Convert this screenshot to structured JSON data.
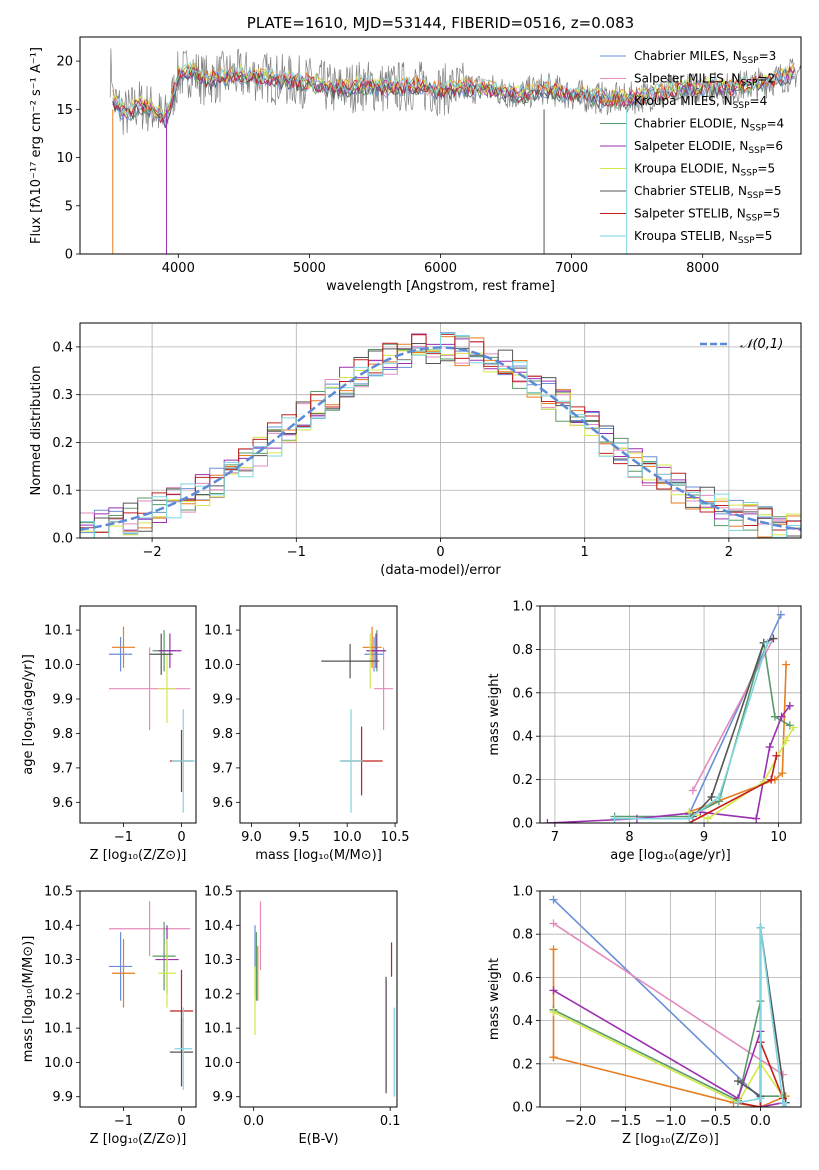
{
  "chart_data": [
    {
      "id": "spectrum",
      "type": "line",
      "title": "PLATE=1610, MJD=53144, FIBERID=0516, z=0.083",
      "xlabel": "wavelength [Angstrom, rest frame]",
      "ylabel": "Flux [fλ10⁻¹⁷ erg cm⁻² s⁻¹ A⁻¹]",
      "xlim": [
        3250,
        8750
      ],
      "ylim": [
        0,
        22.5
      ],
      "xticks": [
        4000,
        5000,
        6000,
        7000,
        8000
      ],
      "yticks": [
        0,
        5,
        10,
        15,
        20
      ],
      "grid": false,
      "legend_position": "top-right",
      "profile": [
        [
          3500,
          16
        ],
        [
          3600,
          14.5
        ],
        [
          3700,
          15.5
        ],
        [
          3800,
          15
        ],
        [
          3900,
          14
        ],
        [
          3950,
          16
        ],
        [
          4000,
          18.5
        ],
        [
          4100,
          19
        ],
        [
          4200,
          18
        ],
        [
          4400,
          18.5
        ],
        [
          4600,
          18.5
        ],
        [
          4800,
          18
        ],
        [
          5000,
          17.8
        ],
        [
          5200,
          17
        ],
        [
          5400,
          17.5
        ],
        [
          5600,
          17.2
        ],
        [
          5800,
          17.5
        ],
        [
          6000,
          17
        ],
        [
          6200,
          17.3
        ],
        [
          6400,
          17
        ],
        [
          6600,
          16.5
        ],
        [
          6800,
          17.2
        ],
        [
          7000,
          16.5
        ],
        [
          7200,
          16.2
        ],
        [
          7400,
          16
        ],
        [
          7600,
          16.5
        ],
        [
          7800,
          17
        ],
        [
          8000,
          17.3
        ],
        [
          8200,
          17.2
        ],
        [
          8400,
          17.6
        ],
        [
          8600,
          18.3
        ],
        [
          8750,
          19
        ]
      ],
      "series": [
        {
          "name": "Chabrier MILES, N_SSP=3",
          "color": "#6a8fd8"
        },
        {
          "name": "Salpeter MILES, N_SSP=2",
          "color": "#e48bbd"
        },
        {
          "name": "Kroupa MILES, N_SSP=4",
          "color": "#e67e22"
        },
        {
          "name": "Chabrier ELODIE, N_SSP=4",
          "color": "#5a9a6a"
        },
        {
          "name": "Salpeter ELODIE, N_SSP=6",
          "color": "#9b30b0"
        },
        {
          "name": "Kroupa ELODIE, N_SSP=5",
          "color": "#d4e84a"
        },
        {
          "name": "Chabrier STELIB, N_SSP=5",
          "color": "#555555"
        },
        {
          "name": "Salpeter STELIB, N_SSP=5",
          "color": "#c0201e"
        },
        {
          "name": "Kroupa STELIB, N_SSP=5",
          "color": "#7fd6e0"
        }
      ],
      "data_color": "#808080"
    },
    {
      "id": "residuals",
      "type": "histogram",
      "xlabel": "(data-model)/error",
      "ylabel": "Normed distribution",
      "xlim": [
        -2.5,
        2.5
      ],
      "ylim": [
        0,
        0.45
      ],
      "xticks": [
        -2,
        -1,
        0,
        1,
        2
      ],
      "yticks": [
        0.0,
        0.1,
        0.2,
        0.3,
        0.4
      ],
      "grid": true,
      "legend_position": "top-right",
      "reference": {
        "name": "𝒩(0,1)",
        "color": "#5b8ad6"
      },
      "bins": 50,
      "series_colors": [
        "#6a8fd8",
        "#e48bbd",
        "#e67e22",
        "#5a9a6a",
        "#9b30b0",
        "#d4e84a",
        "#555555",
        "#c0201e",
        "#7fd6e0"
      ]
    },
    {
      "id": "age-vs-Z",
      "type": "errorbar",
      "xlabel": "Z [log₁₀(Z/Z⊙)]",
      "ylabel": "age  [log₁₀(age/yr)]",
      "xlim": [
        -1.75,
        0.25
      ],
      "ylim": [
        9.54,
        10.17
      ],
      "xticks": [
        -1,
        0
      ],
      "yticks": [
        9.6,
        9.7,
        9.8,
        9.9,
        10.0,
        10.1
      ],
      "points": [
        {
          "x": -1.05,
          "xerr": 0.2,
          "y": 10.03,
          "yerr": 0.05,
          "color": "#6a8fd8"
        },
        {
          "x": -0.55,
          "xerr": 0.7,
          "y": 9.93,
          "yerr": 0.12,
          "color": "#e48bbd"
        },
        {
          "x": -1.0,
          "xerr": 0.2,
          "y": 10.05,
          "yerr": 0.06,
          "color": "#e67e22"
        },
        {
          "x": -0.3,
          "xerr": 0.2,
          "y": 10.04,
          "yerr": 0.06,
          "color": "#5a9a6a"
        },
        {
          "x": -0.2,
          "xerr": 0.2,
          "y": 10.04,
          "yerr": 0.05,
          "color": "#9b30b0"
        },
        {
          "x": -0.25,
          "xerr": 0.15,
          "y": 9.93,
          "yerr": 0.1,
          "color": "#d4e84a"
        },
        {
          "x": -0.35,
          "xerr": 0.2,
          "y": 10.03,
          "yerr": 0.06,
          "color": "#555555"
        },
        {
          "x": 0.0,
          "xerr": 0.2,
          "y": 9.72,
          "yerr": 0.09,
          "color": "#c0201e"
        },
        {
          "x": 0.03,
          "xerr": 0.2,
          "y": 9.72,
          "yerr": 0.15,
          "color": "#7fd6e0"
        }
      ]
    },
    {
      "id": "age-vs-mass",
      "type": "errorbar",
      "xlabel": "mass [log₁₀(M/M⊙)]",
      "ylabel": "",
      "xlim": [
        8.88,
        10.52
      ],
      "ylim": [
        9.54,
        10.17
      ],
      "xticks": [
        9.0,
        9.5,
        10.0,
        10.5
      ],
      "yticks": [
        9.6,
        9.7,
        9.8,
        9.9,
        10.0,
        10.1
      ],
      "points": [
        {
          "x": 10.28,
          "xerr": 0.1,
          "y": 10.03,
          "yerr": 0.05,
          "color": "#6a8fd8"
        },
        {
          "x": 10.38,
          "xerr": 0.1,
          "y": 9.93,
          "yerr": 0.12,
          "color": "#e48bbd"
        },
        {
          "x": 10.26,
          "xerr": 0.1,
          "y": 10.05,
          "yerr": 0.06,
          "color": "#e67e22"
        },
        {
          "x": 10.31,
          "xerr": 0.1,
          "y": 10.04,
          "yerr": 0.06,
          "color": "#5a9a6a"
        },
        {
          "x": 10.3,
          "xerr": 0.1,
          "y": 10.04,
          "yerr": 0.05,
          "color": "#9b30b0"
        },
        {
          "x": 10.24,
          "xerr": 0.1,
          "y": 10.01,
          "yerr": 0.08,
          "color": "#d4e84a"
        },
        {
          "x": 10.03,
          "xerr": 0.3,
          "y": 10.01,
          "yerr": 0.05,
          "color": "#555555"
        },
        {
          "x": 10.15,
          "xerr": 0.22,
          "y": 9.72,
          "yerr": 0.1,
          "color": "#c0201e"
        },
        {
          "x": 10.04,
          "xerr": 0.12,
          "y": 9.72,
          "yerr": 0.15,
          "color": "#7fd6e0"
        }
      ]
    },
    {
      "id": "weight-vs-age",
      "type": "line",
      "xlabel": "age  [log₁₀(age/yr)]",
      "ylabel": "mass weight",
      "xlim": [
        6.8,
        10.3
      ],
      "ylim": [
        0,
        1.0
      ],
      "xticks": [
        7,
        8,
        9,
        10
      ],
      "yticks": [
        0.0,
        0.2,
        0.4,
        0.6,
        0.8,
        1.0
      ],
      "grid": true,
      "series": [
        {
          "color": "#6a8fd8",
          "x": [
            8.8,
            10.03
          ],
          "y": [
            0.04,
            0.96
          ]
        },
        {
          "color": "#e48bbd",
          "x": [
            8.85,
            9.93
          ],
          "y": [
            0.15,
            0.85
          ]
        },
        {
          "color": "#e67e22",
          "x": [
            8.8,
            9.95,
            10.05,
            10.1
          ],
          "y": [
            0.05,
            0.2,
            0.23,
            0.73
          ]
        },
        {
          "color": "#5a9a6a",
          "x": [
            7.8,
            8.8,
            9.2,
            9.8,
            9.95,
            10.15
          ],
          "y": [
            0.03,
            0.03,
            0.1,
            0.83,
            0.49,
            0.45
          ]
        },
        {
          "color": "#9b30b0",
          "x": [
            6.9,
            8.1,
            8.95,
            9.7,
            9.88,
            10.04,
            10.15
          ],
          "y": [
            0.0,
            0.02,
            0.05,
            0.02,
            0.35,
            0.49,
            0.54
          ]
        },
        {
          "color": "#d4e84a",
          "x": [
            8.8,
            9.05,
            9.8,
            10.1,
            10.2
          ],
          "y": [
            0.05,
            0.02,
            0.19,
            0.38,
            0.44
          ]
        },
        {
          "color": "#555555",
          "x": [
            8.85,
            9.1,
            9.8,
            9.93
          ],
          "y": [
            0.03,
            0.12,
            0.83,
            0.85
          ]
        },
        {
          "color": "#c0201e",
          "x": [
            8.8,
            9.9,
            9.97
          ],
          "y": [
            0.0,
            0.2,
            0.31
          ]
        },
        {
          "color": "#7fd6e0",
          "x": [
            7.8,
            8.8,
            9.2,
            9.85
          ],
          "y": [
            0.02,
            0.02,
            0.12,
            0.83
          ]
        }
      ]
    },
    {
      "id": "mass-vs-Z",
      "type": "errorbar",
      "xlabel": "Z [log₁₀(Z/Z⊙)]",
      "ylabel": "mass [log₁₀(M/M⊙)]",
      "xlim": [
        -1.75,
        0.25
      ],
      "ylim": [
        9.87,
        10.5
      ],
      "xticks": [
        -1,
        0
      ],
      "yticks": [
        9.9,
        10.0,
        10.1,
        10.2,
        10.3,
        10.4,
        10.5
      ],
      "points": [
        {
          "x": -1.05,
          "xerr": 0.2,
          "y": 10.28,
          "yerr": 0.1,
          "color": "#6a8fd8"
        },
        {
          "x": -0.55,
          "xerr": 0.7,
          "y": 10.39,
          "yerr": 0.08,
          "color": "#e48bbd"
        },
        {
          "x": -1.0,
          "xerr": 0.2,
          "y": 10.26,
          "yerr": 0.1,
          "color": "#e67e22"
        },
        {
          "x": -0.3,
          "xerr": 0.2,
          "y": 10.31,
          "yerr": 0.1,
          "color": "#5a9a6a"
        },
        {
          "x": -0.25,
          "xerr": 0.2,
          "y": 10.3,
          "yerr": 0.1,
          "color": "#9b30b0"
        },
        {
          "x": -0.25,
          "xerr": 0.15,
          "y": 10.26,
          "yerr": 0.1,
          "color": "#d4e84a"
        },
        {
          "x": 0.0,
          "xerr": 0.2,
          "y": 10.03,
          "yerr": 0.1,
          "color": "#555555"
        },
        {
          "x": 0.0,
          "xerr": 0.2,
          "y": 10.15,
          "yerr": 0.12,
          "color": "#c0201e"
        },
        {
          "x": 0.03,
          "xerr": 0.15,
          "y": 10.04,
          "yerr": 0.12,
          "color": "#7fd6e0"
        }
      ]
    },
    {
      "id": "mass-vs-ebv",
      "type": "errorbar",
      "xlabel": "E(B-V)",
      "ylabel": "",
      "xlim": [
        -0.01,
        0.105
      ],
      "ylim": [
        9.87,
        10.5
      ],
      "xticks": [
        0.0,
        0.1
      ],
      "yticks": [
        9.9,
        10.0,
        10.1,
        10.2,
        10.3,
        10.4,
        10.5
      ],
      "points": [
        {
          "x": 0.001,
          "y": 10.3,
          "yerr": 0.1,
          "color": "#6a8fd8"
        },
        {
          "x": 0.005,
          "y": 10.37,
          "yerr": 0.1,
          "color": "#e48bbd"
        },
        {
          "x": 0.003,
          "y": 10.26,
          "yerr": 0.08,
          "color": "#e67e22"
        },
        {
          "x": 0.002,
          "y": 10.28,
          "yerr": 0.1,
          "color": "#5a9a6a"
        },
        {
          "x": 0.097,
          "y": 10.08,
          "yerr": 0.16,
          "color": "#9b30b0"
        },
        {
          "x": 0.001,
          "y": 10.18,
          "yerr": 0.1,
          "color": "#d4e84a"
        },
        {
          "x": 0.097,
          "y": 10.08,
          "yerr": 0.17,
          "color": "#555555"
        },
        {
          "x": 0.101,
          "y": 10.3,
          "yerr": 0.05,
          "color": "#c0201e"
        },
        {
          "x": 0.103,
          "y": 10.03,
          "yerr": 0.13,
          "color": "#7fd6e0"
        }
      ]
    },
    {
      "id": "weight-vs-Z",
      "type": "line",
      "xlabel": "Z [log₁₀(Z/Z⊙)]",
      "ylabel": "mass weight",
      "xlim": [
        -2.45,
        0.45
      ],
      "ylim": [
        0,
        1.0
      ],
      "xticks": [
        -2.0,
        -1.5,
        -1.0,
        -0.5,
        0.0
      ],
      "yticks": [
        0.0,
        0.2,
        0.4,
        0.6,
        0.8,
        1.0
      ],
      "grid": true,
      "series": [
        {
          "color": "#6a8fd8",
          "x": [
            -2.3,
            0.0
          ],
          "y": [
            0.96,
            0.04
          ]
        },
        {
          "color": "#e48bbd",
          "x": [
            -2.3,
            0.25
          ],
          "y": [
            0.85,
            0.15
          ]
        },
        {
          "color": "#e67e22",
          "x": [
            -2.3,
            -2.3,
            -2.3,
            -0.3,
            0.0,
            0.28
          ],
          "y": [
            0.73,
            0.23,
            0.23,
            0.02,
            0.0,
            0.05
          ]
        },
        {
          "color": "#5a9a6a",
          "x": [
            -2.3,
            -0.25,
            0.0,
            0.0,
            0.0,
            0.25
          ],
          "y": [
            0.45,
            0.03,
            0.49,
            0.83,
            0.05,
            0.05
          ]
        },
        {
          "color": "#9b30b0",
          "x": [
            -2.3,
            -0.25,
            0.0,
            0.0,
            0.25
          ],
          "y": [
            0.54,
            0.04,
            0.35,
            0.0,
            0.02
          ]
        },
        {
          "color": "#d4e84a",
          "x": [
            -2.3,
            -0.25,
            0.0,
            0.25
          ],
          "y": [
            0.44,
            0.02,
            0.2,
            0.05
          ]
        },
        {
          "color": "#555555",
          "x": [
            -0.25,
            0.0,
            0.0,
            0.28
          ],
          "y": [
            0.12,
            0.05,
            0.83,
            0.02
          ]
        },
        {
          "color": "#c0201e",
          "x": [
            -0.25,
            0.0,
            0.0,
            0.25
          ],
          "y": [
            0.02,
            0.0,
            0.3,
            0.04
          ]
        },
        {
          "color": "#7fd6e0",
          "x": [
            -0.25,
            0.0,
            0.0,
            0.25,
            0.28
          ],
          "y": [
            0.02,
            0.04,
            0.83,
            0.02,
            0.0
          ]
        }
      ]
    }
  ]
}
